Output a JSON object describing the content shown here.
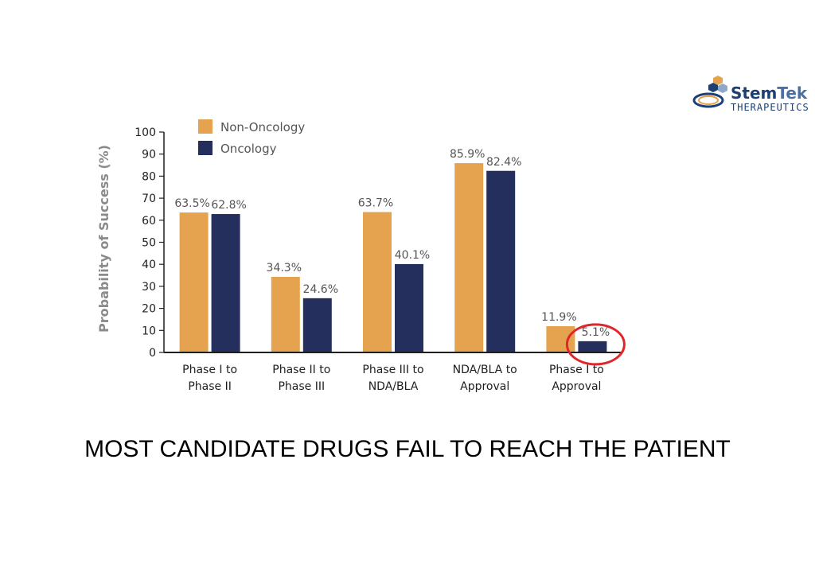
{
  "logo": {
    "word1": "Stem",
    "word2": "Tek",
    "tagline": "THERAPEUTICS"
  },
  "headline": "MOST CANDIDATE DRUGS FAIL TO REACH THE PATIENT",
  "chart_data": {
    "type": "bar",
    "title": "",
    "xlabel": "",
    "ylabel": "Probability of Success (%)",
    "ylim": [
      0,
      100
    ],
    "yticks": [
      0,
      10,
      20,
      30,
      40,
      50,
      60,
      70,
      80,
      90,
      100
    ],
    "grid": false,
    "legend": "top-left",
    "categories": [
      [
        "Phase I to",
        "Phase II"
      ],
      [
        "Phase II to",
        "Phase III"
      ],
      [
        "Phase III to",
        "NDA/BLA"
      ],
      [
        "NDA/BLA to",
        "Approval"
      ],
      [
        "Phase I to",
        "Approval"
      ]
    ],
    "series": [
      {
        "name": "Non-Oncology",
        "color": "#E6A34F",
        "values": [
          63.5,
          34.3,
          63.7,
          85.9,
          11.9
        ],
        "labels": [
          "63.5%",
          "34.3%",
          "63.7%",
          "85.9%",
          "11.9%"
        ]
      },
      {
        "name": "Oncology",
        "color": "#252F5E",
        "values": [
          62.8,
          24.6,
          40.1,
          82.4,
          5.1
        ],
        "labels": [
          "62.8%",
          "24.6%",
          "40.1%",
          "82.4%",
          "5.1%"
        ]
      }
    ],
    "highlight": {
      "series": 1,
      "index": 4,
      "color": "#E0262B"
    }
  }
}
